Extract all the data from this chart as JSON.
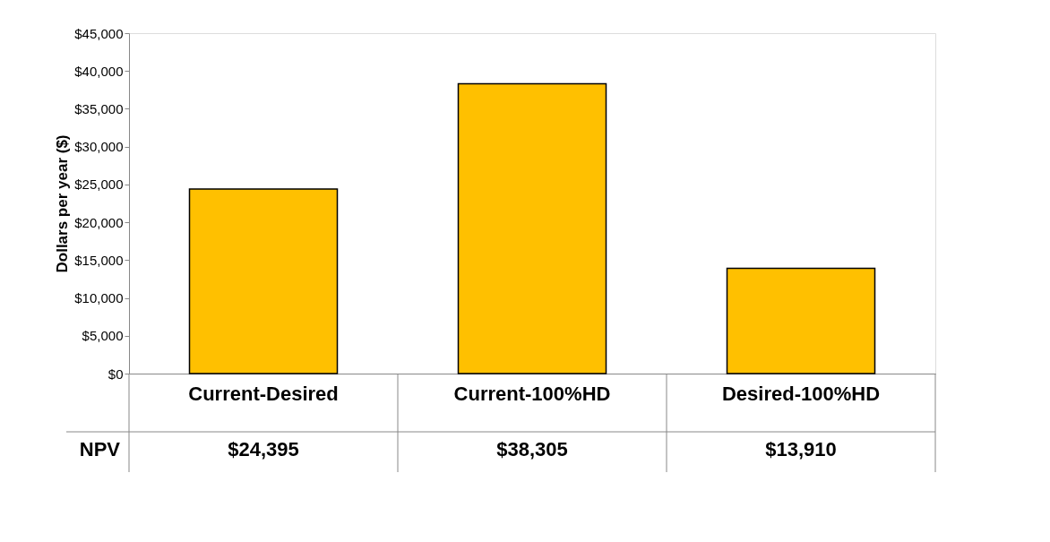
{
  "chart_data": {
    "type": "bar",
    "ylabel": "Dollars per year ($)",
    "categories": [
      "Current-Desired",
      "Current-100%HD",
      "Desired-100%HD"
    ],
    "series": [
      {
        "color": "#ffc000",
        "values": [
          24395,
          38305,
          13910
        ]
      }
    ],
    "value_labels": [
      "$24,395",
      "$38,305",
      "$13,910"
    ],
    "annotations": [
      "NPV"
    ],
    "ylim": [
      0,
      45000
    ],
    "yticks": [
      {
        "value": 0,
        "label": "$0"
      },
      {
        "value": 5000,
        "label": "$5,000"
      },
      {
        "value": 10000,
        "label": "$10,000"
      },
      {
        "value": 15000,
        "label": "$15,000"
      },
      {
        "value": 20000,
        "label": "$20,000"
      },
      {
        "value": 25000,
        "label": "$25,000"
      },
      {
        "value": 30000,
        "label": "$30,000"
      },
      {
        "value": 35000,
        "label": "$35,000"
      },
      {
        "value": 40000,
        "label": "$40,000"
      },
      {
        "value": 45000,
        "label": "$45,000"
      }
    ],
    "grid": false
  }
}
